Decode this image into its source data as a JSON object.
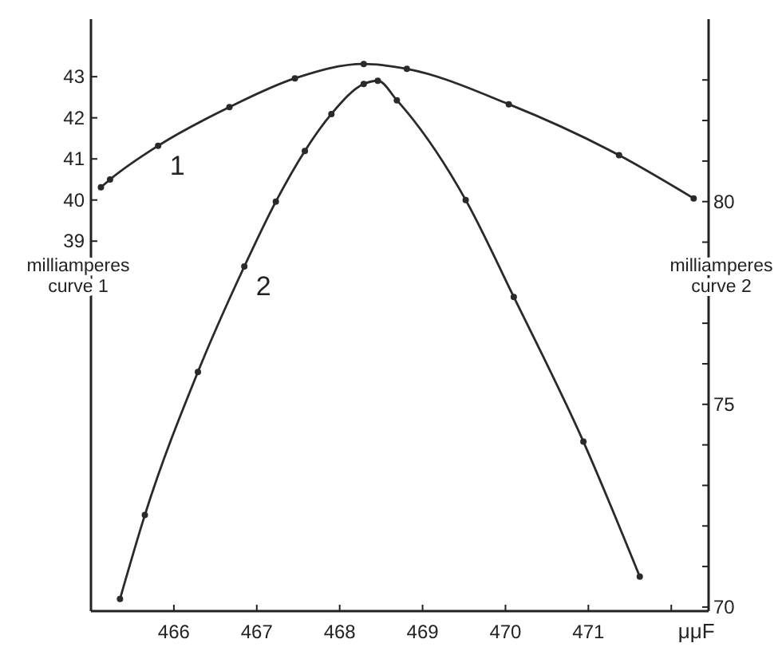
{
  "chart_data": {
    "type": "line",
    "xlabel": "μμF",
    "ylabel": "milliamperes\ncurve 1",
    "y2label": "milliamperes\ncurve 2",
    "xlim": [
      465,
      472.45
    ],
    "xticks": [
      466,
      467,
      468,
      469,
      470,
      471,
      {
        "value": 472,
        "label": null
      }
    ],
    "ylim": [
      30,
      44.4
    ],
    "yticks": [
      39,
      40,
      41,
      42,
      43
    ],
    "y2lim": [
      69.9,
      84.5
    ],
    "y2ticks": [
      70,
      {
        "value": 71,
        "label": null
      },
      {
        "value": 72,
        "label": null
      },
      {
        "value": 73,
        "label": null
      },
      {
        "value": 74,
        "label": null
      },
      75,
      {
        "value": 76,
        "label": null
      },
      {
        "value": 77,
        "label": null
      },
      {
        "value": 78,
        "label": null
      },
      {
        "value": 79,
        "label": null
      },
      80,
      {
        "value": 81,
        "label": null
      },
      {
        "value": 82,
        "label": null
      },
      {
        "value": 83,
        "label": null
      }
    ],
    "grid": false,
    "marker": "circle",
    "line_style": "solid",
    "series": [
      {
        "color": "#2a2a2a",
        "x": [
          465.12,
          465.23,
          465.81,
          466.67,
          467.46,
          468.29,
          468.81,
          470.04,
          471.37,
          472.27
        ],
        "values": [
          40.31,
          40.5,
          41.32,
          42.26,
          42.96,
          43.31,
          43.19,
          42.33,
          41.09,
          40.04
        ]
      },
      {
        "color": "#2a2a2a",
        "axis": "y2",
        "x": [
          465.35,
          465.65,
          466.29,
          466.85,
          467.23,
          467.58,
          467.9,
          468.29,
          468.46,
          468.69,
          469.52,
          470.1,
          470.94,
          471.62
        ],
        "values": [
          70.2,
          72.27,
          75.8,
          78.4,
          80.0,
          81.25,
          82.16,
          82.9,
          82.98,
          82.5,
          80.04,
          77.65,
          74.08,
          70.75
        ]
      }
    ],
    "annotations": [
      "1",
      "2"
    ]
  }
}
